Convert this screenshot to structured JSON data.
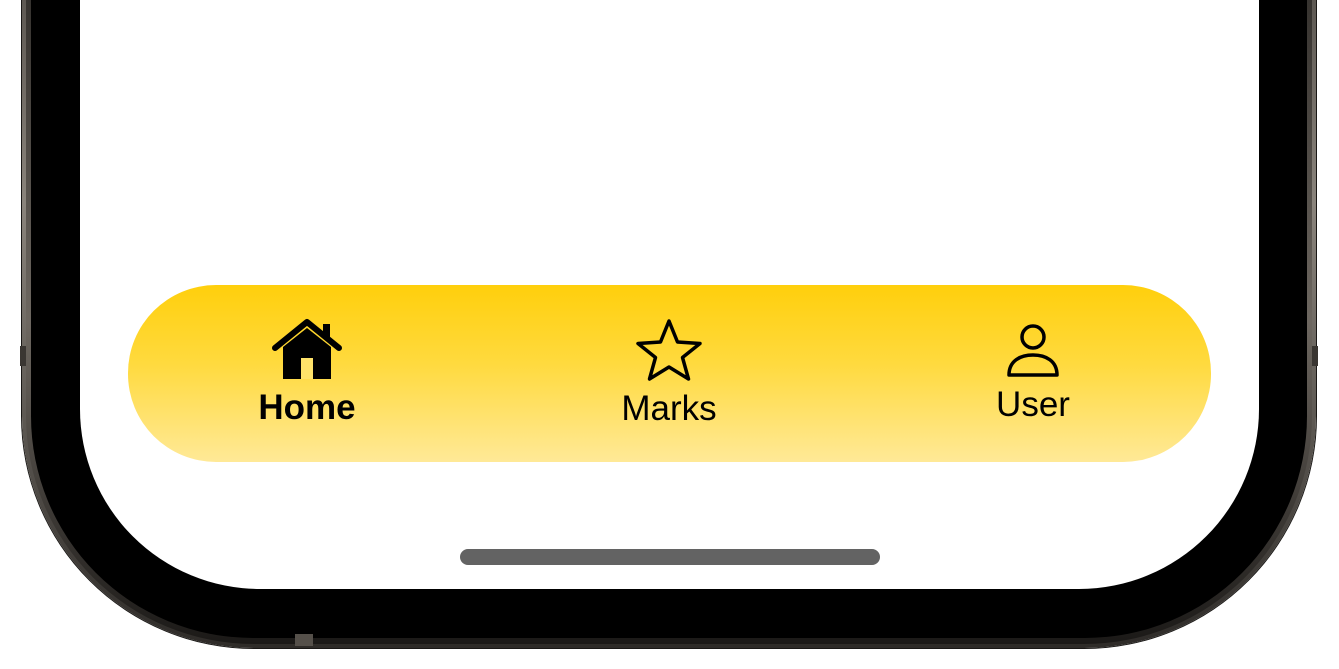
{
  "tab_bar": {
    "tabs": [
      {
        "label": "Home",
        "icon": "home-icon",
        "active": true
      },
      {
        "label": "Marks",
        "icon": "star-icon",
        "active": false
      },
      {
        "label": "User",
        "icon": "user-icon",
        "active": false
      }
    ],
    "colors": {
      "gradient_top": "#ffcf0c",
      "gradient_bottom": "#ffe997",
      "label_color": "#000000"
    }
  },
  "device": {
    "bezel_color": "#000000",
    "home_indicator_color": "#636363"
  }
}
